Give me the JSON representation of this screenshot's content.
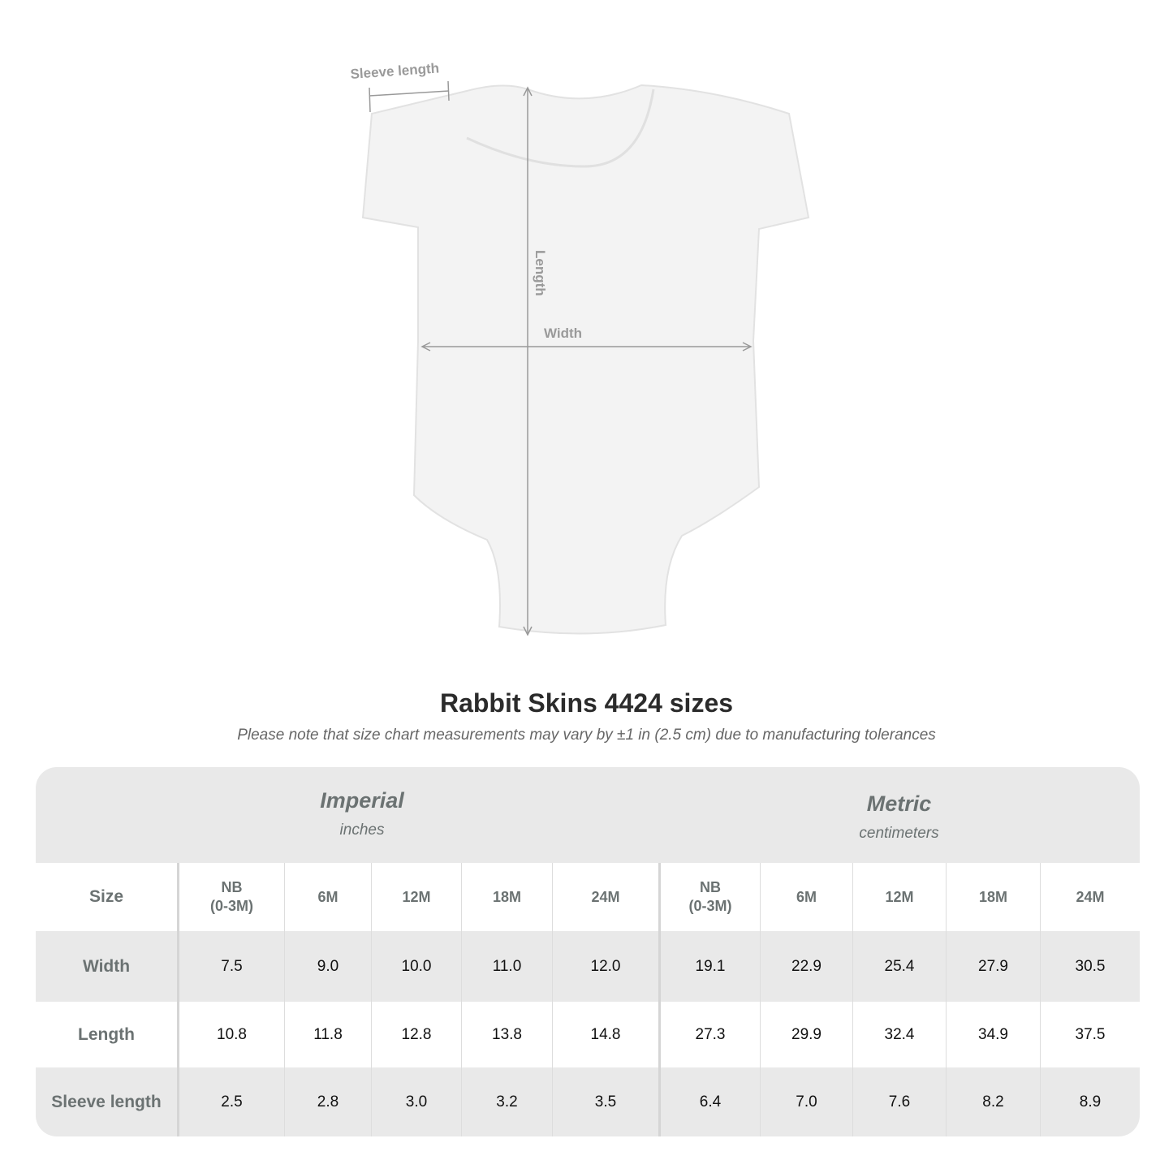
{
  "garment": {
    "labels": {
      "sleeve": "Sleeve length",
      "length": "Length",
      "width": "Width"
    }
  },
  "title": "Rabbit Skins 4424 sizes",
  "note": "Please note that size chart measurements may vary by ±1 in (2.5 cm) due to manufacturing tolerances",
  "table": {
    "imperial": {
      "name": "Imperial",
      "unit": "inches"
    },
    "metric": {
      "name": "Metric",
      "unit": "centimeters"
    },
    "size_label": "Size",
    "sizes": [
      "NB\n(0-3M)",
      "6M",
      "12M",
      "18M",
      "24M",
      "NB\n(0-3M)",
      "6M",
      "12M",
      "18M",
      "24M"
    ],
    "rows": [
      {
        "label": "Width",
        "values": [
          "7.5",
          "9.0",
          "10.0",
          "11.0",
          "12.0",
          "19.1",
          "22.9",
          "25.4",
          "27.9",
          "30.5"
        ]
      },
      {
        "label": "Length",
        "values": [
          "10.8",
          "11.8",
          "12.8",
          "13.8",
          "14.8",
          "27.3",
          "29.9",
          "32.4",
          "34.9",
          "37.5"
        ]
      },
      {
        "label": "Sleeve length",
        "values": [
          "2.5",
          "2.8",
          "3.0",
          "3.2",
          "3.5",
          "6.4",
          "7.0",
          "7.6",
          "8.2",
          "8.9"
        ]
      }
    ]
  }
}
